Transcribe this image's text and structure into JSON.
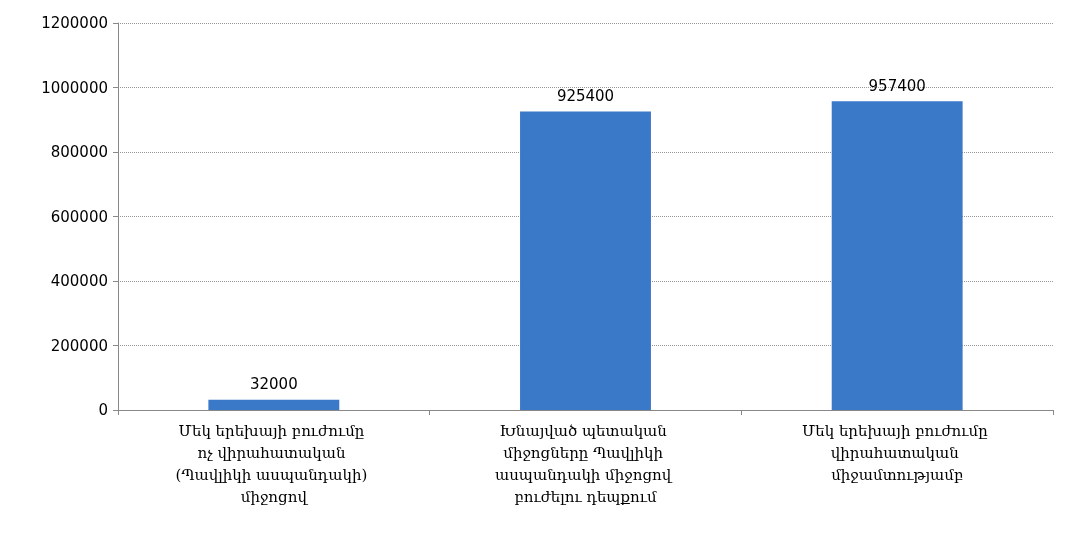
{
  "chart_data": {
    "type": "bar",
    "categories": [
      "Մեկ երեխայի բուժումը ոչ վիրահատական (Պավլիկի ասպանդակի) միջոցով",
      "Խնայված պետական միջոցները Պավլիկի ասպանդակի միջոցով բուժելու դեպքում",
      "Մեկ երեխայի բուժումը վիրահատական միջամտությամբ"
    ],
    "values": [
      32000,
      925400,
      957400
    ],
    "color": "#3a78c8",
    "ylim": [
      0,
      1200000
    ],
    "yticks": [
      0,
      200000,
      400000,
      600000,
      800000,
      1000000,
      1200000
    ],
    "grid": "y",
    "data_labels": true
  }
}
